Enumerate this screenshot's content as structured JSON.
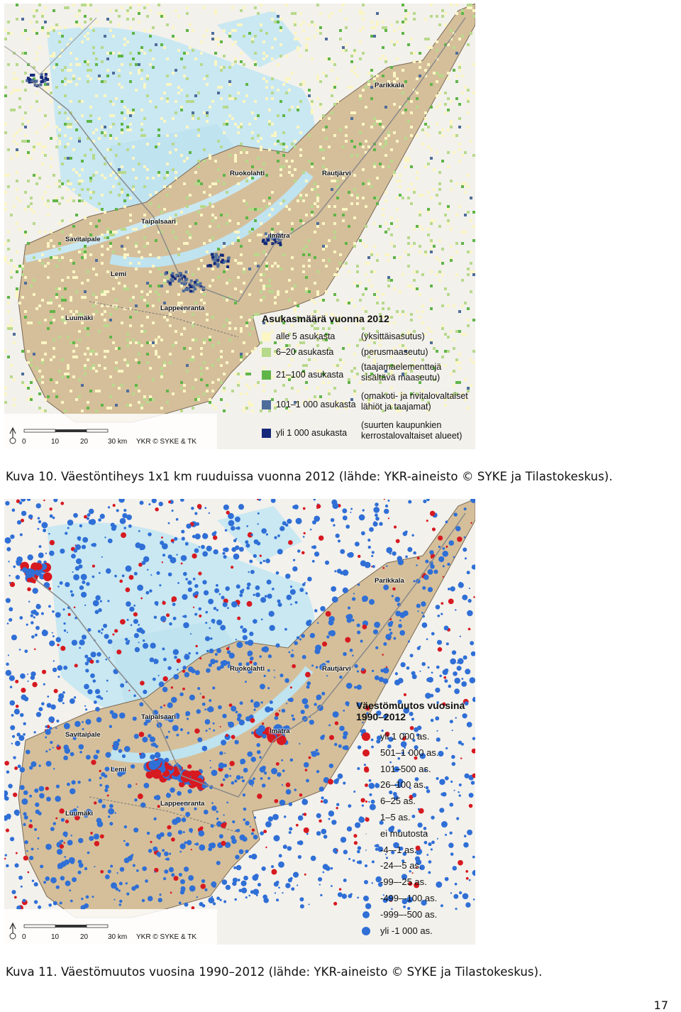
{
  "places": [
    "Parikkala",
    "Ruokolahti",
    "Rautjärvi",
    "Taipalsaari",
    "Imatra",
    "Savitaipale",
    "Lemi",
    "Luumäki",
    "Lappeenranta"
  ],
  "scale": {
    "ticks": [
      "0",
      "10",
      "20",
      "30 km"
    ],
    "credit": "YKR © SYKE & TK"
  },
  "map1_legend": {
    "title": "Asukasmäärä vuonna 2012",
    "items": [
      {
        "label": "alle 5 asukasta",
        "desc": "(yksittäisasutus)",
        "color": "#fbf6c4"
      },
      {
        "label": "6–20 asukasta",
        "desc": "(perusmaaseutu)",
        "color": "#b7d98c"
      },
      {
        "label": "21–100 asukasta",
        "desc": "(taajamaelementtejä\nsisältävä maaseutu)",
        "color": "#5fb548"
      },
      {
        "label": "101–1 000 asukasta",
        "desc": "(omakoti- ja rivitalovaltaiset\nlähiöt ja taajamat)",
        "color": "#4f6d9a"
      },
      {
        "label": "yli 1 000 asukasta",
        "desc": "(suurten kaupunkien\nkerrostalovaltaiset alueet)",
        "color": "#14297a"
      }
    ]
  },
  "caption1": "Kuva 10. Väestöntiheys 1x1 km ruuduissa vuonna 2012 (lähde: YKR-aineisto © SYKE ja Tilastokeskus).",
  "map2_legend": {
    "title": "Väestömuutos vuosina 1990–2012",
    "items": [
      {
        "label": "yli 1 000 as.",
        "color": "#d71920",
        "size": 12
      },
      {
        "label": "501–1 000 as.",
        "color": "#d71920",
        "size": 10
      },
      {
        "label": "101–500 as.",
        "color": "#d71920",
        "size": 7
      },
      {
        "label": "26–100 as.",
        "color": "#d71920",
        "size": 5
      },
      {
        "label": "6–25 as.",
        "color": "#d71920",
        "size": 3
      },
      {
        "label": "1–5 as.",
        "color": "#c06070",
        "size": 2
      },
      {
        "label": "ei muutosta",
        "color": "#bbbbbb",
        "size": 2
      },
      {
        "label": "-4–-1 as.",
        "color": "#6a8fc8",
        "size": 2
      },
      {
        "label": "-24–-5 as.",
        "color": "#2f6fd6",
        "size": 4
      },
      {
        "label": "-99–-25 as.",
        "color": "#2f6fd6",
        "size": 6
      },
      {
        "label": "-499–-100 as.",
        "color": "#2f6fd6",
        "size": 8
      },
      {
        "label": "-999–-500 as.",
        "color": "#2f6fd6",
        "size": 10
      },
      {
        "label": "yli -1 000 as.",
        "color": "#2f6fd6",
        "size": 12
      }
    ]
  },
  "caption2": "Kuva 11. Väestömuutos vuosina 1990–2012 (lähde: YKR-aineisto © SYKE ja Tilastokeskus).",
  "page_number": "17"
}
